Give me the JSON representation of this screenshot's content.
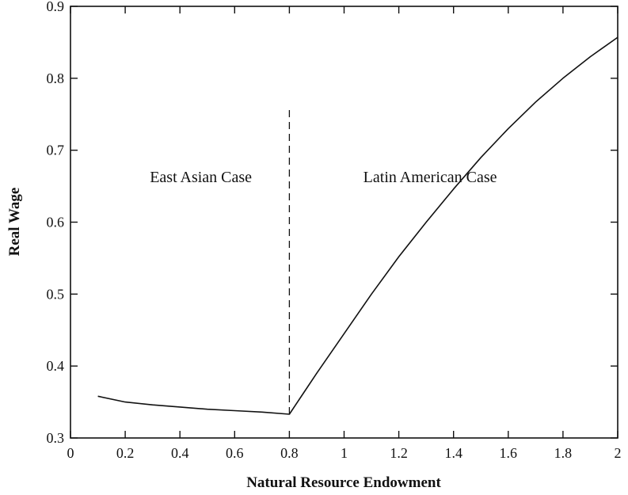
{
  "chart_data": {
    "type": "line",
    "title": "",
    "xlabel": "Natural Resource Endowment",
    "ylabel": "Real Wage",
    "xlim": [
      0,
      2
    ],
    "ylim": [
      0.3,
      0.9
    ],
    "x_ticks": [
      0,
      0.2,
      0.4,
      0.6,
      0.8,
      1,
      1.2,
      1.4,
      1.6,
      1.8,
      2
    ],
    "x_tick_labels": [
      "0",
      "0.2",
      "0.4",
      "0.6",
      "0.8",
      "1",
      "1.2",
      "1.4",
      "1.6",
      "1.8",
      "2"
    ],
    "y_ticks": [
      0.3,
      0.4,
      0.5,
      0.6,
      0.7,
      0.8,
      0.9
    ],
    "y_tick_labels": [
      "0.3",
      "0.4",
      "0.5",
      "0.6",
      "0.7",
      "0.8",
      "0.9"
    ],
    "grid": false,
    "legend": "none",
    "series": [
      {
        "style": "solid",
        "x": [
          0.1,
          0.2,
          0.3,
          0.4,
          0.5,
          0.6,
          0.7,
          0.8,
          0.9,
          1.0,
          1.1,
          1.2,
          1.3,
          1.4,
          1.5,
          1.6,
          1.7,
          1.8,
          1.9,
          2.0
        ],
        "y": [
          0.358,
          0.35,
          0.346,
          0.343,
          0.34,
          0.338,
          0.336,
          0.333,
          0.39,
          0.445,
          0.5,
          0.552,
          0.6,
          0.646,
          0.69,
          0.73,
          0.767,
          0.8,
          0.83,
          0.857
        ]
      }
    ],
    "reference_lines": [
      {
        "orientation": "vertical",
        "style": "dashed",
        "x": 0.8,
        "y_range": [
          0.333,
          0.76
        ]
      }
    ],
    "annotations": [
      {
        "text": "East Asian Case",
        "x": 0.29,
        "y": 0.6555
      },
      {
        "text": "Latin American Case",
        "x": 1.07,
        "y": 0.6555
      }
    ]
  }
}
